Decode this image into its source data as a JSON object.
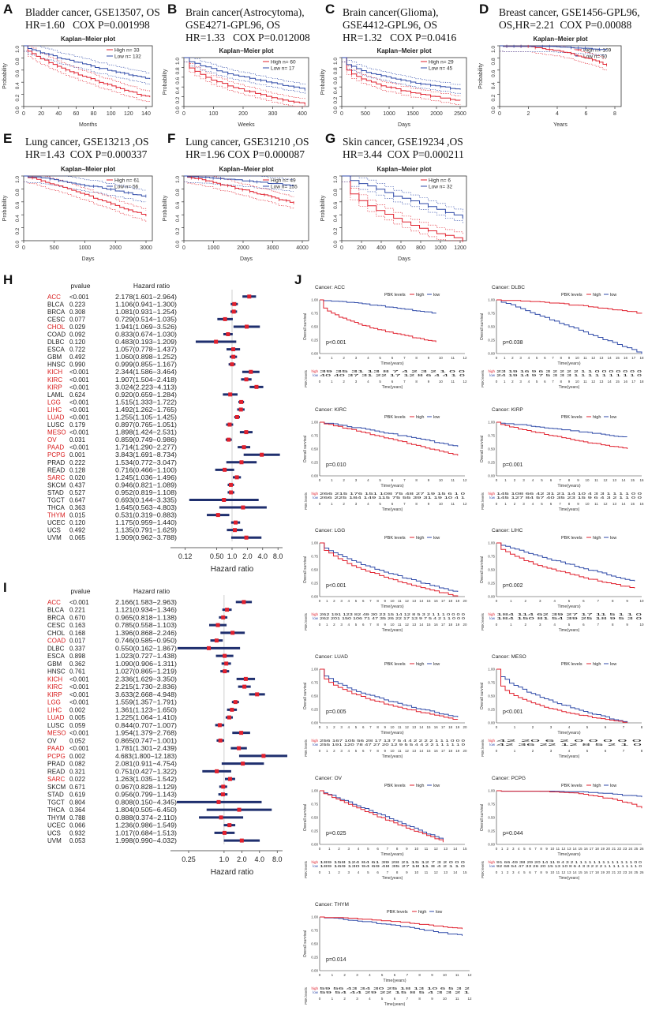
{
  "labels": {
    "A": "A",
    "B": "B",
    "C": "C",
    "D": "D",
    "E": "E",
    "F": "F",
    "G": "G",
    "H": "H",
    "I": "I",
    "J": "J"
  },
  "km_top": [
    {
      "id": "A",
      "title": "Bladder cancer, GSE13507, OS\nHR=1.60   COX P=0.001998",
      "plot_title": "Kaplan−Meier plot",
      "legend": [
        "High  n= 33",
        "Low   n= 132"
      ],
      "xlabel": "Months",
      "ylabel": "Probability",
      "xticks": [
        "0",
        "20",
        "40",
        "60",
        "80",
        "100",
        "120",
        "140"
      ],
      "yticks": [
        "0.0",
        "0.2",
        "0.4",
        "0.6",
        "0.8",
        "1.0"
      ]
    },
    {
      "id": "B",
      "title": "Brain cancer(Astrocytoma),\nGSE4271-GPL96, OS\nHR=1.33   COX P=0.012008",
      "plot_title": "Kaplan−Meier plot",
      "legend": [
        "High  n= 60",
        "Low   n= 17"
      ],
      "xlabel": "Weeks",
      "ylabel": "Probability",
      "xticks": [
        "0",
        "100",
        "200",
        "300",
        "400"
      ],
      "yticks": [
        "0.0",
        "0.2",
        "0.4",
        "0.6",
        "0.8",
        "1.0"
      ]
    },
    {
      "id": "C",
      "title": "Brain cancer(Glioma),\nGSE4412-GPL96, OS\nHR=1.32   COX P=0.0416",
      "plot_title": "Kaplan−Meier plot",
      "legend": [
        "High  n= 29",
        "Low   n= 45"
      ],
      "xlabel": "Days",
      "ylabel": "Probability",
      "xticks": [
        "0",
        "500",
        "1000",
        "1500",
        "2000",
        "2500"
      ],
      "yticks": [
        "0.0",
        "0.2",
        "0.4",
        "0.6",
        "0.8",
        "1.0"
      ]
    },
    {
      "id": "D",
      "title": "Breast cancer, GSE1456-GPL96,\nOS,HR=2.21  COX P=0.00088",
      "plot_title": "Kaplan−Meier plot",
      "legend": [
        "High  n= 109",
        "Low   n= 50"
      ],
      "xlabel": "Years",
      "ylabel": "Probability",
      "xticks": [
        "0",
        "2",
        "4",
        "6",
        "8"
      ],
      "yticks": [
        "0.0",
        "0.2",
        "0.4",
        "0.6",
        "0.8",
        "1.0"
      ]
    },
    {
      "id": "E",
      "title": "Lung cancer, GSE13213 ,OS\nHR=1.43  COX P=0.000337",
      "plot_title": "Kaplan−Meier plot",
      "legend": [
        "High  n= 61",
        "Low   n= 56"
      ],
      "xlabel": "Days",
      "ylabel": "Probability",
      "xticks": [
        "0",
        "500",
        "1000",
        "2000",
        "3000"
      ],
      "yticks": [
        "0.0",
        "0.2",
        "0.4",
        "0.6",
        "0.8",
        "1.0"
      ]
    },
    {
      "id": "F",
      "title": "Lung cancer, GSE31210 ,OS\nHR=1.96 COX P=0.000087",
      "plot_title": "Kaplan−Meier plot",
      "legend": [
        "High  n= 49",
        "Low   n= 155"
      ],
      "xlabel": "Days",
      "ylabel": "Probability",
      "xticks": [
        "0",
        "1000",
        "2000",
        "3000",
        "4000"
      ],
      "yticks": [
        "0.0",
        "0.2",
        "0.4",
        "0.6",
        "0.8",
        "1.0"
      ]
    },
    {
      "id": "G",
      "title": "Skin cancer, GSE19234 ,OS\nHR=3.44  COX P=0.000211",
      "plot_title": "Kaplan−Meier plot",
      "legend": [
        "High  n= 6",
        "Low   n= 32"
      ],
      "xlabel": "Days",
      "ylabel": "Probability",
      "xticks": [
        "0",
        "200",
        "400",
        "600",
        "800",
        "1000",
        "1200"
      ],
      "yticks": [
        "0.0",
        "0.2",
        "0.4",
        "0.6",
        "0.8",
        "1.0"
      ]
    }
  ],
  "forest_H": {
    "col_pvalue": "pvalue",
    "col_hr": "Hazard ratio",
    "xlabel": "Hazard ratio",
    "xticks": [
      "0.12",
      "0.50",
      "1.0",
      "2.0",
      "4.0",
      "8.0"
    ],
    "rows": [
      {
        "name": "ACC",
        "p": "<0.001",
        "hr": "2.178(1.601−2.964)",
        "red": true,
        "v": 2.178,
        "lo": 1.601,
        "hi": 2.964
      },
      {
        "name": "BLCA",
        "p": "0.223",
        "hr": "1.106(0.941−1.300)",
        "red": false,
        "v": 1.106,
        "lo": 0.941,
        "hi": 1.3
      },
      {
        "name": "BRCA",
        "p": "0.308",
        "hr": "1.081(0.931−1.254)",
        "red": false,
        "v": 1.081,
        "lo": 0.931,
        "hi": 1.254
      },
      {
        "name": "CESC",
        "p": "0.077",
        "hr": "0.729(0.514−1.035)",
        "red": false,
        "v": 0.729,
        "lo": 0.514,
        "hi": 1.035
      },
      {
        "name": "CHOL",
        "p": "0.029",
        "hr": "1.941(1.069−3.526)",
        "red": true,
        "v": 1.941,
        "lo": 1.069,
        "hi": 3.526
      },
      {
        "name": "COAD",
        "p": "0.092",
        "hr": "0.833(0.674−1.030)",
        "red": false,
        "v": 0.833,
        "lo": 0.674,
        "hi": 1.03
      },
      {
        "name": "DLBC",
        "p": "0.120",
        "hr": "0.483(0.193−1.209)",
        "red": false,
        "v": 0.483,
        "lo": 0.193,
        "hi": 1.209
      },
      {
        "name": "ESCA",
        "p": "0.722",
        "hr": "1.057(0.778−1.437)",
        "red": false,
        "v": 1.057,
        "lo": 0.778,
        "hi": 1.437
      },
      {
        "name": "GBM",
        "p": "0.492",
        "hr": "1.060(0.898−1.252)",
        "red": false,
        "v": 1.06,
        "lo": 0.898,
        "hi": 1.252
      },
      {
        "name": "HNSC",
        "p": "0.990",
        "hr": "0.999(0.855−1.167)",
        "red": false,
        "v": 0.999,
        "lo": 0.855,
        "hi": 1.167
      },
      {
        "name": "KICH",
        "p": "<0.001",
        "hr": "2.344(1.586−3.464)",
        "red": true,
        "v": 2.344,
        "lo": 1.586,
        "hi": 3.464
      },
      {
        "name": "KIRC",
        "p": "<0.001",
        "hr": "1.907(1.504−2.418)",
        "red": true,
        "v": 1.907,
        "lo": 1.504,
        "hi": 2.418
      },
      {
        "name": "KIRP",
        "p": "<0.001",
        "hr": "3.024(2.223−4.113)",
        "red": true,
        "v": 3.024,
        "lo": 2.223,
        "hi": 4.113
      },
      {
        "name": "LAML",
        "p": "0.624",
        "hr": "0.920(0.659−1.284)",
        "red": false,
        "v": 0.92,
        "lo": 0.659,
        "hi": 1.284
      },
      {
        "name": "LGG",
        "p": "<0.001",
        "hr": "1.515(1.333−1.722)",
        "red": true,
        "v": 1.515,
        "lo": 1.333,
        "hi": 1.722
      },
      {
        "name": "LIHC",
        "p": "<0.001",
        "hr": "1.492(1.262−1.765)",
        "red": true,
        "v": 1.492,
        "lo": 1.262,
        "hi": 1.765
      },
      {
        "name": "LUAD",
        "p": "<0.001",
        "hr": "1.255(1.105−1.425)",
        "red": true,
        "v": 1.255,
        "lo": 1.105,
        "hi": 1.425
      },
      {
        "name": "LUSC",
        "p": "0.179",
        "hr": "0.897(0.765−1.051)",
        "red": false,
        "v": 0.897,
        "lo": 0.765,
        "hi": 1.051
      },
      {
        "name": "MESO",
        "p": "<0.001",
        "hr": "1.898(1.424−2.531)",
        "red": true,
        "v": 1.898,
        "lo": 1.424,
        "hi": 2.531
      },
      {
        "name": "OV",
        "p": "0.031",
        "hr": "0.859(0.749−0.986)",
        "red": true,
        "v": 0.859,
        "lo": 0.749,
        "hi": 0.986
      },
      {
        "name": "PAAD",
        "p": "<0.001",
        "hr": "1.714(1.290−2.277)",
        "red": true,
        "v": 1.714,
        "lo": 1.29,
        "hi": 2.277
      },
      {
        "name": "PCPG",
        "p": "0.001",
        "hr": "3.843(1.691−8.734)",
        "red": true,
        "v": 3.843,
        "lo": 1.691,
        "hi": 8.734
      },
      {
        "name": "PRAD",
        "p": "0.222",
        "hr": "1.534(0.772−3.047)",
        "red": false,
        "v": 1.534,
        "lo": 0.772,
        "hi": 3.047
      },
      {
        "name": "READ",
        "p": "0.128",
        "hr": "0.716(0.466−1.100)",
        "red": false,
        "v": 0.716,
        "lo": 0.466,
        "hi": 1.1
      },
      {
        "name": "SARC",
        "p": "0.020",
        "hr": "1.245(1.036−1.496)",
        "red": true,
        "v": 1.245,
        "lo": 1.036,
        "hi": 1.496
      },
      {
        "name": "SKCM",
        "p": "0.437",
        "hr": "0.946(0.821−1.089)",
        "red": false,
        "v": 0.946,
        "lo": 0.821,
        "hi": 1.089
      },
      {
        "name": "STAD",
        "p": "0.527",
        "hr": "0.952(0.819−1.108)",
        "red": false,
        "v": 0.952,
        "lo": 0.819,
        "hi": 1.108
      },
      {
        "name": "TGCT",
        "p": "0.647",
        "hr": "0.693(0.144−3.335)",
        "red": false,
        "v": 0.693,
        "lo": 0.144,
        "hi": 3.335
      },
      {
        "name": "THCA",
        "p": "0.363",
        "hr": "1.645(0.563−4.803)",
        "red": false,
        "v": 1.645,
        "lo": 0.563,
        "hi": 4.803
      },
      {
        "name": "THYM",
        "p": "0.015",
        "hr": "0.531(0.319−0.883)",
        "red": true,
        "v": 0.531,
        "lo": 0.319,
        "hi": 0.883
      },
      {
        "name": "UCEC",
        "p": "0.120",
        "hr": "1.175(0.959−1.440)",
        "red": false,
        "v": 1.175,
        "lo": 0.959,
        "hi": 1.44
      },
      {
        "name": "UCS",
        "p": "0.492",
        "hr": "1.135(0.791−1.629)",
        "red": false,
        "v": 1.135,
        "lo": 0.791,
        "hi": 1.629
      },
      {
        "name": "UVM",
        "p": "0.065",
        "hr": "1.909(0.962−3.788)",
        "red": false,
        "v": 1.909,
        "lo": 0.962,
        "hi": 3.788
      }
    ]
  },
  "forest_I": {
    "col_pvalue": "pvalue",
    "col_hr": "Hazard ratio",
    "xlabel": "Hazard ratio",
    "xticks": [
      "0.25",
      "1.0",
      "2.0",
      "4.0",
      "8.0"
    ],
    "rows": [
      {
        "name": "ACC",
        "p": "<0.001",
        "hr": "2.166(1.583−2.963)",
        "red": true,
        "v": 2.166,
        "lo": 1.583,
        "hi": 2.963
      },
      {
        "name": "BLCA",
        "p": "0.221",
        "hr": "1.121(0.934−1.346)",
        "red": false,
        "v": 1.121,
        "lo": 0.934,
        "hi": 1.346
      },
      {
        "name": "BRCA",
        "p": "0.670",
        "hr": "0.965(0.818−1.138)",
        "red": false,
        "v": 0.965,
        "lo": 0.818,
        "hi": 1.138
      },
      {
        "name": "CESC",
        "p": "0.163",
        "hr": "0.785(0.558−1.103)",
        "red": false,
        "v": 0.785,
        "lo": 0.558,
        "hi": 1.103
      },
      {
        "name": "CHOL",
        "p": "0.168",
        "hr": "1.396(0.868−2.246)",
        "red": false,
        "v": 1.396,
        "lo": 0.868,
        "hi": 2.246
      },
      {
        "name": "COAD",
        "p": "0.017",
        "hr": "0.746(0.585−0.950)",
        "red": true,
        "v": 0.746,
        "lo": 0.585,
        "hi": 0.95
      },
      {
        "name": "DLBC",
        "p": "0.337",
        "hr": "0.550(0.162−1.867)",
        "red": false,
        "v": 0.55,
        "lo": 0.162,
        "hi": 1.867
      },
      {
        "name": "ESCA",
        "p": "0.898",
        "hr": "1.023(0.727−1.438)",
        "red": false,
        "v": 1.023,
        "lo": 0.727,
        "hi": 1.438
      },
      {
        "name": "GBM",
        "p": "0.362",
        "hr": "1.090(0.906−1.311)",
        "red": false,
        "v": 1.09,
        "lo": 0.906,
        "hi": 1.311
      },
      {
        "name": "HNSC",
        "p": "0.761",
        "hr": "1.027(0.865−1.219)",
        "red": false,
        "v": 1.027,
        "lo": 0.865,
        "hi": 1.219
      },
      {
        "name": "KICH",
        "p": "<0.001",
        "hr": "2.336(1.629−3.350)",
        "red": true,
        "v": 2.336,
        "lo": 1.629,
        "hi": 3.35
      },
      {
        "name": "KIRC",
        "p": "<0.001",
        "hr": "2.215(1.730−2.836)",
        "red": true,
        "v": 2.215,
        "lo": 1.73,
        "hi": 2.836
      },
      {
        "name": "KIRP",
        "p": "<0.001",
        "hr": "3.633(2.668−4.948)",
        "red": true,
        "v": 3.633,
        "lo": 2.668,
        "hi": 4.948
      },
      {
        "name": "LGG",
        "p": "<0.001",
        "hr": "1.559(1.357−1.791)",
        "red": true,
        "v": 1.559,
        "lo": 1.357,
        "hi": 1.791
      },
      {
        "name": "LIHC",
        "p": "0.002",
        "hr": "1.361(1.123−1.650)",
        "red": true,
        "v": 1.361,
        "lo": 1.123,
        "hi": 1.65
      },
      {
        "name": "LUAD",
        "p": "0.005",
        "hr": "1.225(1.064−1.410)",
        "red": true,
        "v": 1.225,
        "lo": 1.064,
        "hi": 1.41
      },
      {
        "name": "LUSC",
        "p": "0.059",
        "hr": "0.844(0.707−1.007)",
        "red": false,
        "v": 0.844,
        "lo": 0.707,
        "hi": 1.007
      },
      {
        "name": "MESO",
        "p": "<0.001",
        "hr": "1.954(1.379−2.768)",
        "red": true,
        "v": 1.954,
        "lo": 1.379,
        "hi": 2.768
      },
      {
        "name": "OV",
        "p": "0.052",
        "hr": "0.865(0.747−1.001)",
        "red": false,
        "v": 0.865,
        "lo": 0.747,
        "hi": 1.001
      },
      {
        "name": "PAAD",
        "p": "<0.001",
        "hr": "1.781(1.301−2.439)",
        "red": true,
        "v": 1.781,
        "lo": 1.301,
        "hi": 2.439
      },
      {
        "name": "PCPG",
        "p": "0.002",
        "hr": "4.683(1.800−12.183)",
        "red": true,
        "v": 4.683,
        "lo": 1.8,
        "hi": 12.183
      },
      {
        "name": "PRAD",
        "p": "0.082",
        "hr": "2.081(0.911−4.754)",
        "red": false,
        "v": 2.081,
        "lo": 0.911,
        "hi": 4.754
      },
      {
        "name": "READ",
        "p": "0.321",
        "hr": "0.751(0.427−1.322)",
        "red": false,
        "v": 0.751,
        "lo": 0.427,
        "hi": 1.322
      },
      {
        "name": "SARC",
        "p": "0.022",
        "hr": "1.263(1.035−1.542)",
        "red": true,
        "v": 1.263,
        "lo": 1.035,
        "hi": 1.542
      },
      {
        "name": "SKCM",
        "p": "0.671",
        "hr": "0.967(0.828−1.129)",
        "red": false,
        "v": 0.967,
        "lo": 0.828,
        "hi": 1.129
      },
      {
        "name": "STAD",
        "p": "0.619",
        "hr": "0.956(0.799−1.143)",
        "red": false,
        "v": 0.956,
        "lo": 0.799,
        "hi": 1.143
      },
      {
        "name": "TGCT",
        "p": "0.804",
        "hr": "0.808(0.150−4.345)",
        "red": false,
        "v": 0.808,
        "lo": 0.15,
        "hi": 4.345
      },
      {
        "name": "THCA",
        "p": "0.364",
        "hr": "1.804(0.505−6.450)",
        "red": false,
        "v": 1.804,
        "lo": 0.505,
        "hi": 6.45
      },
      {
        "name": "THYM",
        "p": "0.788",
        "hr": "0.888(0.374−2.110)",
        "red": false,
        "v": 0.888,
        "lo": 0.374,
        "hi": 2.11
      },
      {
        "name": "UCEC",
        "p": "0.066",
        "hr": "1.236(0.986−1.549)",
        "red": false,
        "v": 1.236,
        "lo": 0.986,
        "hi": 1.549
      },
      {
        "name": "UCS",
        "p": "0.932",
        "hr": "1.017(0.684−1.513)",
        "red": false,
        "v": 1.017,
        "lo": 0.684,
        "hi": 1.513
      },
      {
        "name": "UVM",
        "p": "0.053",
        "hr": "1.998(0.990−4.032)",
        "red": false,
        "v": 1.998,
        "lo": 0.99,
        "hi": 4.032
      }
    ]
  },
  "km_J": [
    {
      "cancer": "Cancer: ACC",
      "pval": "p<0.001",
      "xmax": 12,
      "high_risk": "39  35  31  13   8   7   4   2   3   2   1   0   0",
      "low_risk": "40  40  37  31  22  17  12   8   6   4   4   1   0"
    },
    {
      "cancer": "Cancer: DLBC",
      "pval": "p=0.038",
      "xmax": 18,
      "high_risk": "23  19  16   9   6   3   2   2   2   2   1   1   0   0   0   0   0   0   0",
      "low_risk": "24  19  14   9   7   5   3   3   3   1   1   1   1   1   1   1   1   1   0"
    },
    {
      "cancer": "Cancer: KIRC",
      "pval": "p=0.010",
      "xmax": 12,
      "high_risk": "266 215 176 151 108  75  48  27  19  15   6   1   0",
      "low_risk": "266 225 184 149 115  75  55  39  31  19  10   4   1"
    },
    {
      "cancer": "Cancer: KIRP",
      "pval": "p=0.001",
      "xmax": 16,
      "high_risk": "145 108  66  42  31  21  14  10   4   3   3   1   1   1   1   0   0",
      "low_risk": "145 127  84  57  40  35  23  15   9   6   4   3   2   1   1   0   0"
    },
    {
      "cancer": "Cancer: LGG",
      "pval": "p<0.001",
      "xmax": 20,
      "high_risk": "262 191 123  82  49  30  23  15  14  12   8   5   3   2   1   1   1   0   0   0   0",
      "low_risk": "262 201 150 106  71  47  35  26  22  17  13   9   7   5   4   2   1   1   0   0   0"
    },
    {
      "cancer": "Cancer: LIHC",
      "pval": "p=0.002",
      "xmax": 10,
      "high_risk": "184 114  62  39  27  17  11   5   1   1   0",
      "low_risk": "184 150  81  54  39  25  18   9   5   3   0"
    },
    {
      "cancer": "Cancer: LUAD",
      "pval": "p=0.005",
      "xmax": 20,
      "high_risk": "256 167 105  56  28  17  13   7   5   4   4   2   2   2   2   1   1   1   0   0   0",
      "low_risk": "255 191 120  78  47  27  20  12   9   5   5   4   4   2   2   1   1   1   1   1   0"
    },
    {
      "cancer": "Cancer: MESO",
      "pval": "p<0.001",
      "xmax": 8,
      "high_risk": "42  20   6   2   0   0   0   0   0",
      "low_risk": "42  36  22  12   8   5   2   1   0"
    },
    {
      "cancer": "Cancer: OV",
      "pval": "p=0.025",
      "xmax": 15,
      "high_risk": "189 158 124  84  61  39  28  21  15  12   7   3   2   0   0   0",
      "low_risk": "189 169 130  94  69  48  35  27  18  11   8   4   2   1   1   0"
    },
    {
      "cancer": "Cancer: PCPG",
      "pval": "p=0.044",
      "xmax": 26,
      "high_risk": "91 66 49 38 29 20 14 11 9 4 3 2 1 1 1 1 1 1 1 1 1 1 1 1 1 0 0",
      "low_risk": "92 68 54 47 33 26 20 15 13 10 8 6 4 3 3 2 2 2 1 1 1 1 1 1 1 1 0"
    },
    {
      "cancer": "Cancer: THYM",
      "pval": "p=0.014",
      "xmax": 12,
      "high_risk": "59  56  43  34  30  25  18  13  10   6   5   3   2",
      "low_risk": "59  54  44  29  22  15   8   5   4   3   3   2   1"
    }
  ],
  "km_J_common": {
    "legend_title": "PBK levels",
    "legend_high": "high",
    "legend_low": "low",
    "ylabel": "Overall survival",
    "xlabel": "Time(years)",
    "risk_label": "PBK levels",
    "risk_high": "high",
    "risk_low": "low",
    "yticks": [
      "0.00",
      "0.25",
      "0.50",
      "0.75",
      "1.00"
    ]
  },
  "colors": {
    "high": "#e0212e",
    "low": "#2f4aa8",
    "red_label": "#d81b1b",
    "navy": "#1f2f6e"
  }
}
